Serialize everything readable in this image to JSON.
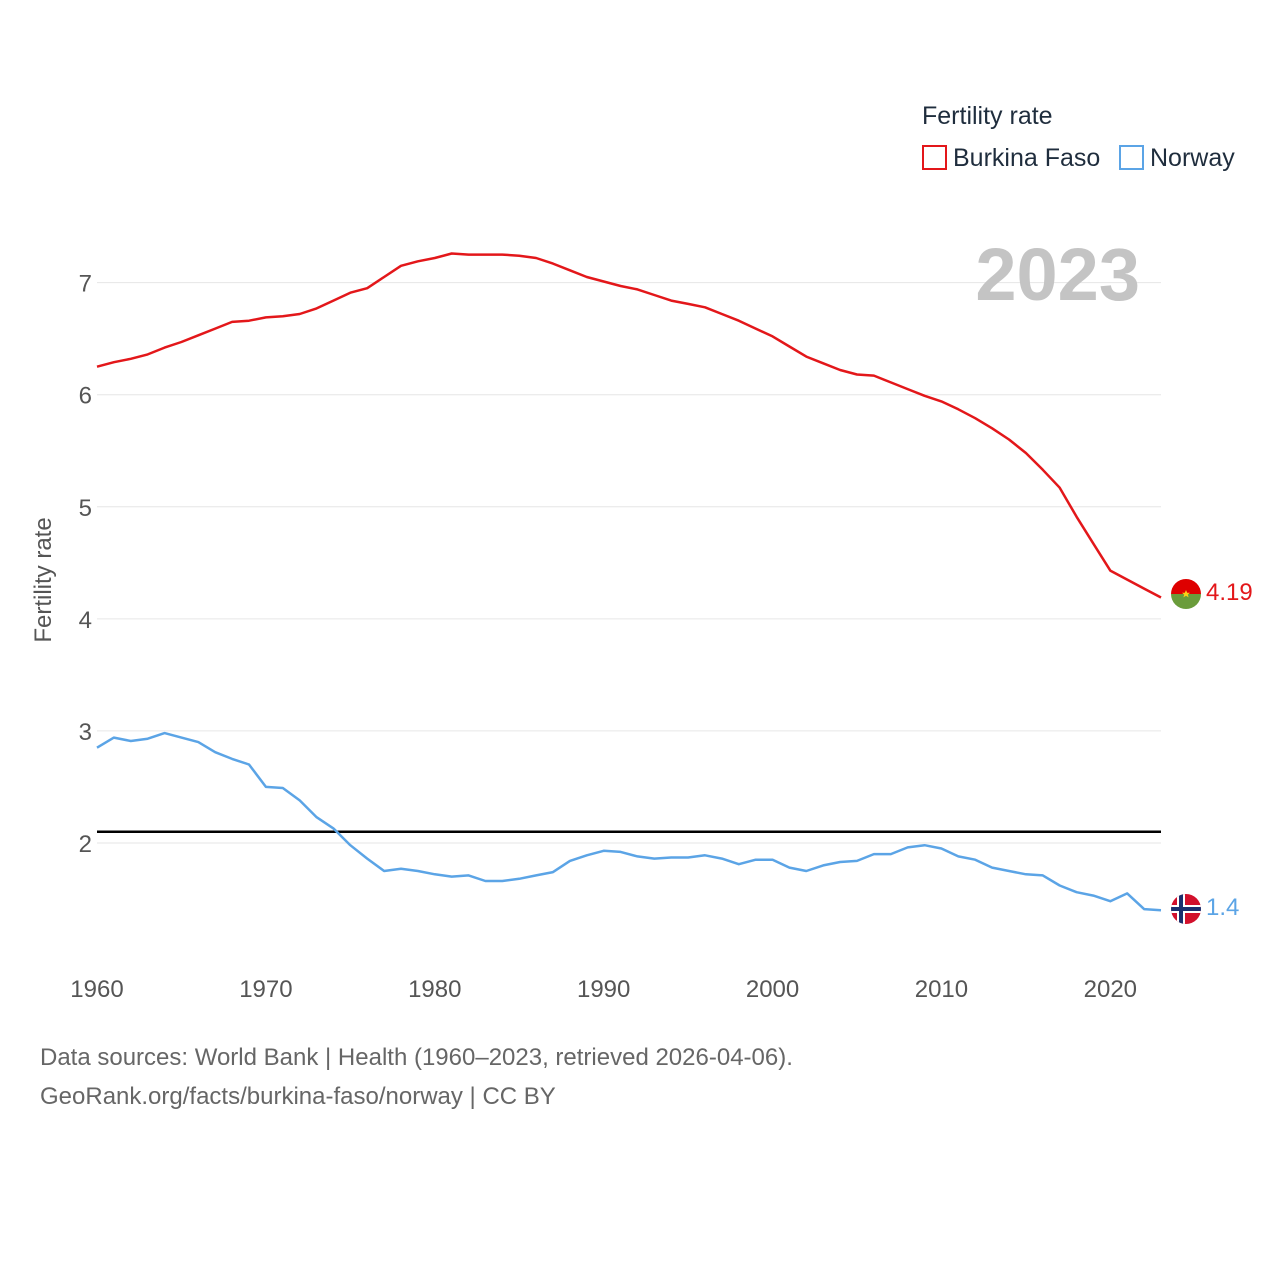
{
  "chart_data": {
    "type": "line",
    "title": "Fertility rate",
    "xlabel": "",
    "ylabel": "Fertility rate",
    "current_year_label": "2023",
    "xlim": [
      1960,
      2023
    ],
    "ylim": [
      1.0,
      7.55
    ],
    "x_ticks": [
      1960,
      1970,
      1980,
      1990,
      2000,
      2010,
      2020
    ],
    "y_ticks": [
      2,
      3,
      4,
      5,
      6,
      7
    ],
    "grid": true,
    "legend_position": "top-right",
    "reference_line": {
      "y": 2.1,
      "color": "#000000"
    },
    "x": [
      1960,
      1961,
      1962,
      1963,
      1964,
      1965,
      1966,
      1967,
      1968,
      1969,
      1970,
      1971,
      1972,
      1973,
      1974,
      1975,
      1976,
      1977,
      1978,
      1979,
      1980,
      1981,
      1982,
      1983,
      1984,
      1985,
      1986,
      1987,
      1988,
      1989,
      1990,
      1991,
      1992,
      1993,
      1994,
      1995,
      1996,
      1997,
      1998,
      1999,
      2000,
      2001,
      2002,
      2003,
      2004,
      2005,
      2006,
      2007,
      2008,
      2009,
      2010,
      2011,
      2012,
      2013,
      2014,
      2015,
      2016,
      2017,
      2018,
      2019,
      2020,
      2021,
      2022,
      2023
    ],
    "series": [
      {
        "name": "Burkina Faso",
        "color": "#e3171a",
        "end_label": "4.19",
        "values": [
          6.25,
          6.29,
          6.32,
          6.36,
          6.42,
          6.47,
          6.53,
          6.59,
          6.65,
          6.66,
          6.69,
          6.7,
          6.72,
          6.77,
          6.84,
          6.91,
          6.95,
          7.05,
          7.15,
          7.19,
          7.22,
          7.26,
          7.25,
          7.25,
          7.25,
          7.24,
          7.22,
          7.17,
          7.11,
          7.05,
          7.01,
          6.97,
          6.94,
          6.89,
          6.84,
          6.81,
          6.78,
          6.72,
          6.66,
          6.59,
          6.52,
          6.43,
          6.34,
          6.28,
          6.22,
          6.18,
          6.17,
          6.11,
          6.05,
          5.99,
          5.94,
          5.87,
          5.79,
          5.7,
          5.6,
          5.48,
          5.33,
          5.17,
          4.91,
          4.67,
          4.43,
          4.35,
          4.27,
          4.19
        ]
      },
      {
        "name": "Norway",
        "color": "#5ba4e6",
        "end_label": "1.4",
        "values": [
          2.85,
          2.94,
          2.91,
          2.93,
          2.98,
          2.94,
          2.9,
          2.81,
          2.75,
          2.7,
          2.5,
          2.49,
          2.38,
          2.23,
          2.13,
          1.98,
          1.86,
          1.75,
          1.77,
          1.75,
          1.72,
          1.7,
          1.71,
          1.66,
          1.66,
          1.68,
          1.71,
          1.74,
          1.84,
          1.89,
          1.93,
          1.92,
          1.88,
          1.86,
          1.87,
          1.87,
          1.89,
          1.86,
          1.81,
          1.85,
          1.85,
          1.78,
          1.75,
          1.8,
          1.83,
          1.84,
          1.9,
          1.9,
          1.96,
          1.98,
          1.95,
          1.88,
          1.85,
          1.78,
          1.75,
          1.72,
          1.71,
          1.62,
          1.56,
          1.53,
          1.48,
          1.55,
          1.41,
          1.4
        ]
      }
    ]
  },
  "footer": {
    "line1": "Data sources: World Bank | Health (1960–2023, retrieved 2026-04-06).",
    "line2": "GeoRank.org/facts/burkina-faso/norway | CC BY"
  }
}
